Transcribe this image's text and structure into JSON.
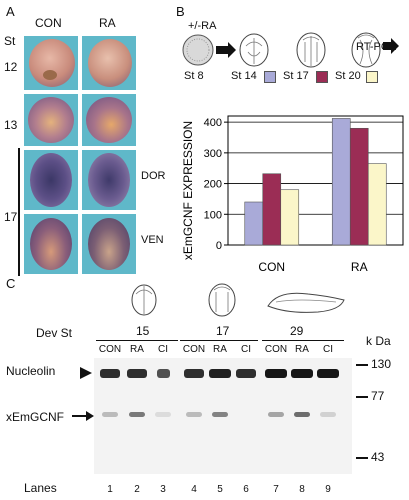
{
  "panelA": {
    "label": "A",
    "col_con": "CON",
    "col_ra": "RA",
    "st_header": "St",
    "stages": [
      "12",
      "13",
      "17"
    ],
    "row_dor": "DOR",
    "row_ven": "VEN"
  },
  "panelB": {
    "label": "B",
    "treatment": "+/-RA",
    "st8": "St 8",
    "st14": "St 14",
    "st17": "St 17",
    "st20": "St 20",
    "rtpcr": "RT-PCR",
    "colors": {
      "st14": "#a9aad8",
      "st17": "#9b2d55",
      "st20": "#fbf6c9"
    }
  },
  "chart_data": {
    "type": "bar",
    "categories": [
      "CON",
      "RA"
    ],
    "series": [
      {
        "name": "St 14",
        "values": [
          140,
          412
        ]
      },
      {
        "name": "St 17",
        "values": [
          232,
          380
        ]
      },
      {
        "name": "St 20",
        "values": [
          180,
          265
        ]
      }
    ],
    "xlabel": "",
    "ylabel": "xEmGCNF EXPRESSION",
    "ylim": [
      0,
      420
    ],
    "yticks": [
      "0",
      "100",
      "200",
      "300",
      "400"
    ],
    "grid": true,
    "legend": "top"
  },
  "panelC": {
    "label": "C",
    "dev_st": "Dev St",
    "stages": [
      "15",
      "17",
      "29"
    ],
    "lane_conditions": [
      "CON",
      "RA",
      "CI",
      "CON",
      "RA",
      "CI",
      "CON",
      "RA",
      "CI"
    ],
    "kda_header": "k Da",
    "markers": [
      "130",
      "77",
      "43"
    ],
    "nucleolin": "Nucleolin",
    "xemgcnf": "xEmGCNF",
    "lanes_label": "Lanes",
    "lane_numbers": [
      "1",
      "2",
      "3",
      "4",
      "5",
      "6",
      "7",
      "8",
      "9"
    ]
  }
}
